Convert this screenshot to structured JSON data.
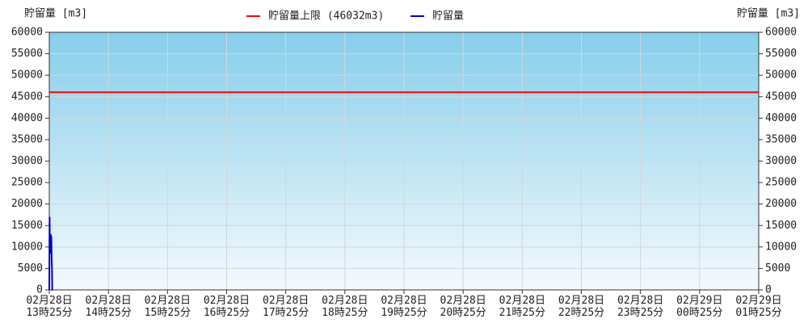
{
  "chart_data": {
    "type": "line",
    "y_label": "貯留量 [m3]",
    "y2_label": "貯留量 [m3]",
    "xlim": [
      0,
      12
    ],
    "xticks": [
      {
        "value": 0,
        "label": "02月28日\n13時25分"
      },
      {
        "value": 1,
        "label": "02月28日\n14時25分"
      },
      {
        "value": 2,
        "label": "02月28日\n15時25分"
      },
      {
        "value": 3,
        "label": "02月28日\n16時25分"
      },
      {
        "value": 4,
        "label": "02月28日\n17時25分"
      },
      {
        "value": 5,
        "label": "02月28日\n18時25分"
      },
      {
        "value": 6,
        "label": "02月28日\n19時25分"
      },
      {
        "value": 7,
        "label": "02月28日\n20時25分"
      },
      {
        "value": 8,
        "label": "02月28日\n21時25分"
      },
      {
        "value": 9,
        "label": "02月28日\n22時25分"
      },
      {
        "value": 10,
        "label": "02月28日\n23時25分"
      },
      {
        "value": 11,
        "label": "02月29日\n00時25分"
      },
      {
        "value": 12,
        "label": "02月29日\n01時25分"
      }
    ],
    "ylim": [
      0,
      60000
    ],
    "yticks": [
      0,
      5000,
      10000,
      15000,
      20000,
      25000,
      30000,
      35000,
      40000,
      45000,
      50000,
      55000,
      60000
    ],
    "y2lim": [
      0,
      60000
    ],
    "y2ticks": [
      0,
      5000,
      10000,
      15000,
      20000,
      25000,
      30000,
      35000,
      40000,
      45000,
      50000,
      55000,
      60000
    ],
    "grid": true,
    "series": [
      {
        "name": "貯留量上限 (46032m3)",
        "color": "#ff0000",
        "x": [
          0,
          12
        ],
        "values": [
          46032,
          46032
        ]
      },
      {
        "name": "貯留量",
        "color": "#0000cc",
        "x": [
          0,
          0.005,
          0.01,
          0.015,
          0.02,
          0.025,
          0.03,
          0.035,
          0.04,
          0.045,
          0.05,
          0.055
        ],
        "values": [
          0,
          17000,
          9000,
          13000,
          8500,
          13000,
          9000,
          12500,
          7000,
          5000,
          0,
          0
        ]
      }
    ]
  }
}
